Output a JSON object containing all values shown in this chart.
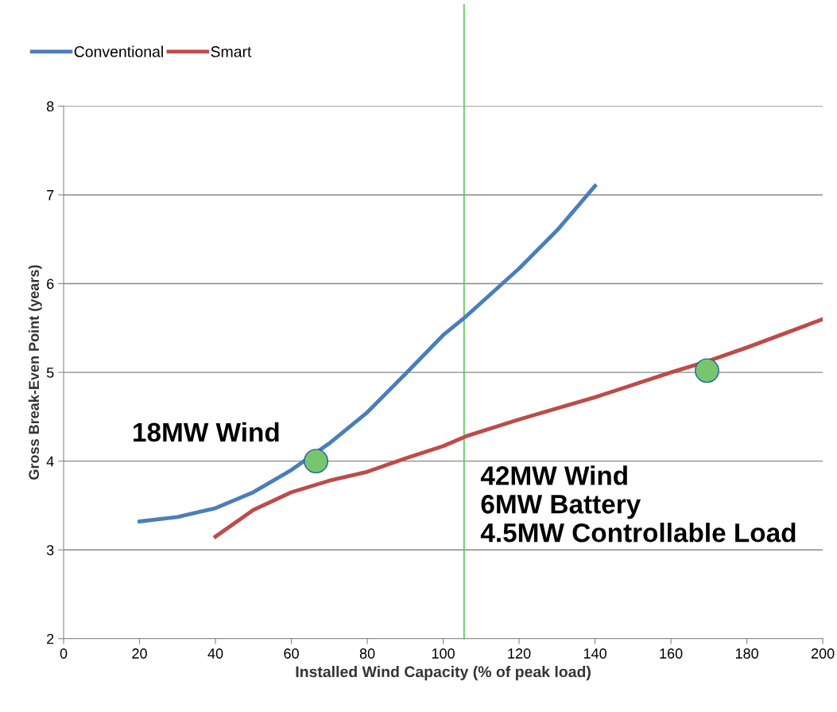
{
  "chart_data": {
    "type": "line",
    "xlabel": "Installed Wind Capacity (% of peak load)",
    "ylabel": "Gross Break-Even Point (years)",
    "xlim": [
      0,
      200
    ],
    "xticks": [
      0,
      20,
      40,
      60,
      80,
      100,
      120,
      140,
      160,
      180,
      200
    ],
    "ylim": [
      2,
      8
    ],
    "yticks": [
      2,
      3,
      4,
      5,
      6,
      7,
      8
    ],
    "grid": "y",
    "legend": "top left",
    "marker": "none",
    "line_style": "solid",
    "series": [
      {
        "name": "Conventional",
        "color": "#4a7ebb",
        "x": [
          20,
          30,
          40,
          50,
          60,
          70,
          80,
          90,
          100,
          106,
          120,
          130,
          140
        ],
        "values": [
          3.32,
          3.37,
          3.47,
          3.65,
          3.9,
          4.2,
          4.55,
          4.98,
          5.42,
          5.63,
          6.17,
          6.6,
          7.1
        ]
      },
      {
        "name": "Smart",
        "color": "#be4b48",
        "x": [
          40,
          50,
          60,
          70,
          80,
          90,
          100,
          106,
          120,
          140,
          160,
          170,
          180,
          200
        ],
        "values": [
          3.15,
          3.45,
          3.65,
          3.78,
          3.88,
          4.03,
          4.17,
          4.28,
          4.47,
          4.72,
          5.0,
          5.13,
          5.28,
          5.6
        ]
      },
      {
        "type": "scatter",
        "color": "#77c66e",
        "marker": "circle",
        "x": [
          66.5,
          169.5
        ],
        "values": [
          4.0,
          5.02
        ]
      }
    ],
    "ref_lines": [
      {
        "axis": "x",
        "value": 105.5,
        "color": "#5ac85a"
      }
    ],
    "annotations": [
      "18MW Wind",
      "42MW Wind\n6MW Battery\n4.5MW Controllable Load"
    ]
  }
}
